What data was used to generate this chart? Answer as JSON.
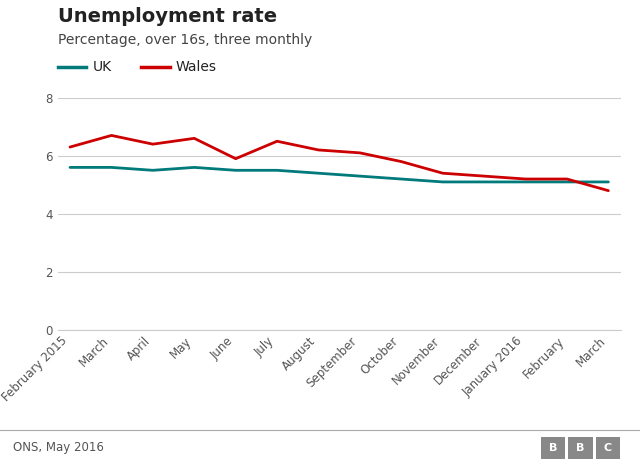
{
  "title": "Unemployment rate",
  "subtitle": "Percentage, over 16s, three monthly",
  "x_labels": [
    "February 2015",
    "March",
    "April",
    "May",
    "June",
    "July",
    "August",
    "September",
    "October",
    "November",
    "December",
    "January 2016",
    "February",
    "March"
  ],
  "uk_values": [
    5.6,
    5.6,
    5.5,
    5.6,
    5.5,
    5.5,
    5.4,
    5.3,
    5.2,
    5.1,
    5.1,
    5.1,
    5.1,
    5.1
  ],
  "wales_values": [
    6.3,
    6.7,
    6.4,
    6.6,
    5.9,
    6.5,
    6.2,
    6.1,
    5.8,
    5.4,
    5.3,
    5.2,
    5.2,
    4.8
  ],
  "uk_color": "#007a7a",
  "wales_color": "#cc0000",
  "ylim": [
    0,
    8
  ],
  "yticks": [
    0,
    2,
    4,
    6,
    8
  ],
  "grid_color": "#cccccc",
  "background_color": "#ffffff",
  "footer_text": "ONS, May 2016",
  "footer_bg": "#e0e0e0",
  "line_width": 2.0,
  "title_fontsize": 14,
  "subtitle_fontsize": 10,
  "legend_fontsize": 10,
  "tick_fontsize": 8.5,
  "footer_fontsize": 8.5,
  "bbc_bg": "#888888"
}
